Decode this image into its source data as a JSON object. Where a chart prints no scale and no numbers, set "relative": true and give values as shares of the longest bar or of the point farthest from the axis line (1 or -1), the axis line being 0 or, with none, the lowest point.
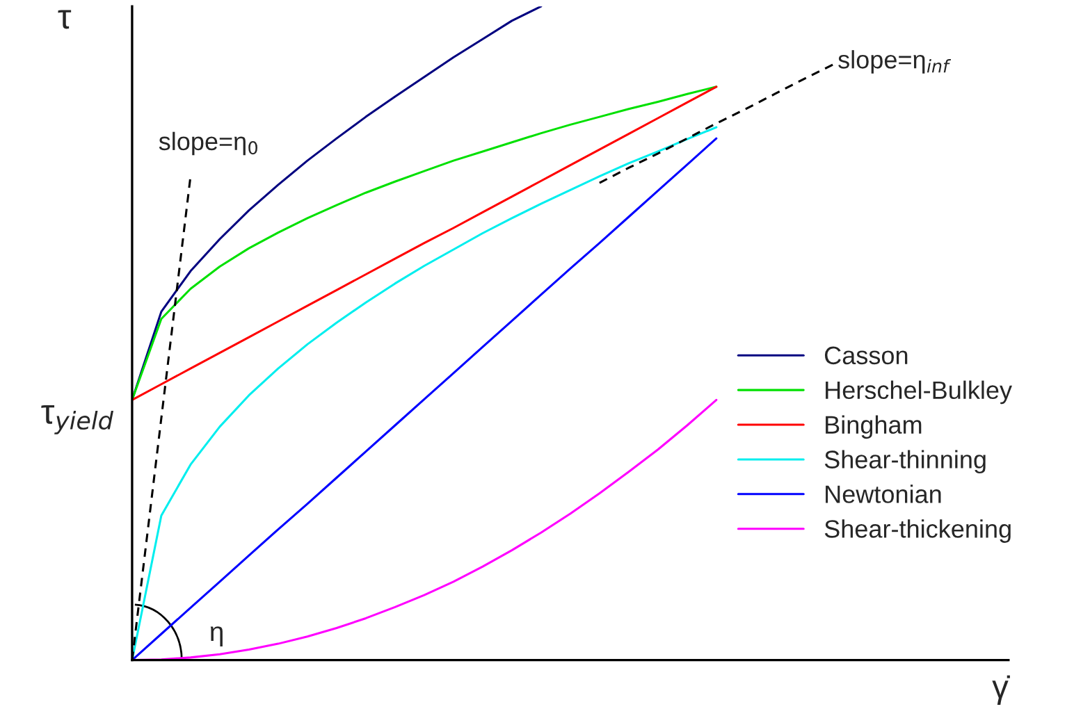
{
  "chart_data": {
    "type": "line",
    "relative": true,
    "xlabel": "γ̇",
    "ylabel": "τ",
    "categories": [
      null,
      null,
      null,
      null,
      null,
      null,
      null,
      null,
      null,
      null,
      null,
      null,
      null,
      null,
      null,
      null,
      null,
      null,
      null,
      null,
      null,
      null,
      null,
      null,
      null,
      null,
      null,
      null,
      null,
      null,
      null
    ],
    "series": [
      {
        "name": "Casson",
        "color": "#000080",
        "values": [
          0.398,
          0.533,
          0.595,
          0.644,
          0.688,
          0.727,
          0.764,
          0.798,
          0.831,
          0.862,
          0.892,
          0.922,
          0.95,
          0.978,
          1.0,
          null,
          null,
          null,
          null,
          null,
          null,
          null,
          null,
          null,
          null,
          null,
          null,
          null,
          null,
          null,
          null
        ]
      },
      {
        "name": "Herschel-Bulkley",
        "color": "#00e000",
        "values": [
          0.398,
          0.522,
          0.568,
          0.602,
          0.63,
          0.654,
          0.676,
          0.696,
          0.715,
          0.732,
          0.748,
          0.764,
          0.778,
          0.792,
          0.806,
          0.819,
          0.831,
          0.843,
          0.854,
          0.866,
          0.877,
          null,
          null,
          null,
          null,
          null,
          null,
          null,
          null,
          null,
          null
        ]
      },
      {
        "name": "Bingham",
        "color": "#ff0000",
        "values": [
          0.398,
          0.422,
          0.446,
          0.47,
          0.494,
          0.518,
          0.542,
          0.566,
          0.59,
          0.614,
          0.638,
          0.661,
          0.685,
          0.709,
          0.733,
          0.757,
          0.781,
          0.805,
          0.829,
          0.853,
          0.877,
          null,
          null,
          null,
          null,
          null,
          null,
          null,
          null,
          null,
          null
        ]
      },
      {
        "name": "Shear-thinning",
        "color": "#00eeee",
        "values": [
          0,
          0.221,
          0.299,
          0.357,
          0.405,
          0.446,
          0.483,
          0.516,
          0.547,
          0.576,
          0.603,
          0.628,
          0.653,
          0.676,
          0.698,
          0.719,
          0.74,
          0.76,
          0.778,
          0.797,
          0.815,
          null,
          null,
          null,
          null,
          null,
          null,
          null,
          null,
          null,
          null
        ]
      },
      {
        "name": "Newtonian",
        "color": "#0000ff",
        "values": [
          0,
          0.04,
          0.08,
          0.12,
          0.16,
          0.2,
          0.239,
          0.279,
          0.319,
          0.359,
          0.399,
          0.439,
          0.479,
          0.519,
          0.559,
          0.599,
          0.638,
          0.678,
          0.718,
          0.758,
          0.798,
          null,
          null,
          null,
          null,
          null,
          null,
          null,
          null,
          null,
          null
        ]
      },
      {
        "name": "Shear-thickening",
        "color": "#ff00ff",
        "values": [
          0,
          0.001,
          0.004,
          0.009,
          0.016,
          0.025,
          0.036,
          0.049,
          0.064,
          0.081,
          0.0995,
          0.12,
          0.143,
          0.168,
          0.195,
          0.224,
          0.255,
          0.288,
          0.322,
          0.359,
          0.398,
          null,
          null,
          null,
          null,
          null,
          null,
          null,
          null,
          null,
          null
        ]
      },
      {
        "color": "#000000",
        "line_style": "dashed",
        "values": [
          0,
          0.37,
          0.74,
          null,
          null,
          null,
          null,
          null,
          null,
          null,
          null,
          null,
          null,
          null,
          null,
          null,
          null,
          null,
          null,
          null,
          null,
          null,
          null,
          null,
          null,
          null,
          null,
          null,
          null,
          null,
          null
        ]
      },
      {
        "color": "#000000",
        "line_style": "dashed",
        "values": [
          null,
          null,
          null,
          null,
          null,
          null,
          null,
          null,
          null,
          null,
          null,
          null,
          null,
          null,
          null,
          null,
          0.73,
          0.753,
          0.775,
          0.798,
          0.821,
          0.843,
          0.866,
          0.889,
          0.911,
          null,
          null,
          null,
          null,
          null,
          null
        ]
      }
    ],
    "annotations": [
      "slope=η$_{0}$",
      "slope=η$_{inf}$",
      "η",
      "τ$_{yield}$"
    ],
    "legend": "right",
    "marker": "none",
    "line_style": "solid"
  }
}
